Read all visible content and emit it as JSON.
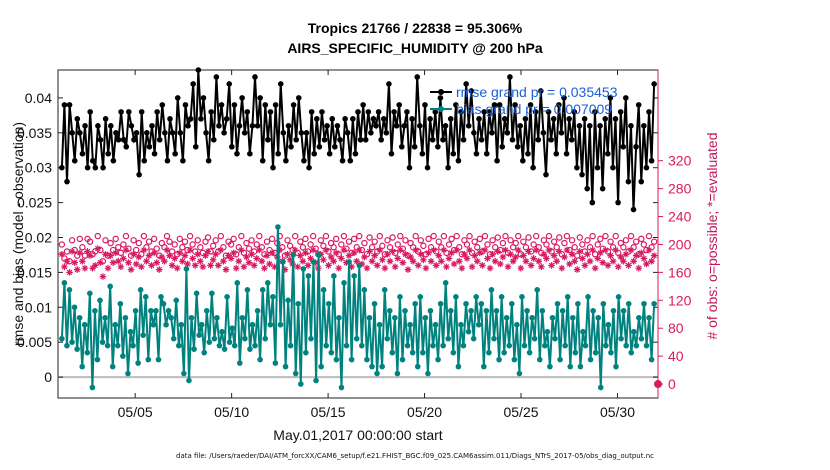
{
  "title_line1": "Tropics 21766 / 22838 = 95.306%",
  "title_line2": "AIRS_SPECIFIC_HUMIDITY @ 200 hPa",
  "xlabel": "May.01,2017 00:00:00 start",
  "ylabel_left": "rmse and bias (model - observation)",
  "ylabel_right": "# of obs: o=possible; *=evaluated",
  "footer": "data file: /Users/raeder/DAI/ATM_forcXX/CAM6_setup/f.e21.FHIST_BGC.f09_025.CAM6assim.011/Diags_NTrS_2017-05/obs_diag_output.nc",
  "chart_data": {
    "type": "line",
    "x_ticks": [
      5,
      10,
      15,
      20,
      25,
      30
    ],
    "x_tick_labels": [
      "05/05",
      "05/10",
      "05/15",
      "05/20",
      "05/25",
      "05/30"
    ],
    "xlim": [
      1,
      32.1
    ],
    "ylim_left": [
      -0.003,
      0.044
    ],
    "yticks_left": [
      0,
      0.005,
      0.01,
      0.015,
      0.02,
      0.025,
      0.03,
      0.035,
      0.04
    ],
    "ytick_labels_left": [
      "0",
      "0.005",
      "0.01",
      "0.015",
      "0.02",
      "0.025",
      "0.03",
      "0.035",
      "0.04"
    ],
    "ylim_right": [
      -20,
      450
    ],
    "yticks_right": [
      0,
      40,
      80,
      120,
      160,
      200,
      240,
      280,
      320
    ],
    "ytick_labels_right": [
      "0",
      "40",
      "80",
      "120",
      "160",
      "200",
      "240",
      "280",
      "320"
    ],
    "legend": [
      {
        "label": "rmse grand pr = 0.035453",
        "color": "#000000"
      },
      {
        "label": "bias grand pr = 0.007009",
        "color": "#00827f"
      }
    ],
    "colors": {
      "rmse": "#000000",
      "bias": "#00827f",
      "obs": "#d81b60",
      "zero_line": "#bbbbbb",
      "legend_text": "#1a5fd6"
    },
    "series": [
      {
        "name": "rmse",
        "axis": "left",
        "style": "line-marker",
        "values": [
          0.03,
          0.039,
          0.028,
          0.039,
          0.035,
          0.031,
          0.037,
          0.035,
          0.032,
          0.036,
          0.03,
          0.038,
          0.031,
          0.03,
          0.036,
          0.034,
          0.03,
          0.037,
          0.032,
          0.036,
          0.031,
          0.035,
          0.034,
          0.038,
          0.034,
          0.033,
          0.038,
          0.036,
          0.034,
          0.035,
          0.029,
          0.038,
          0.031,
          0.035,
          0.033,
          0.036,
          0.032,
          0.038,
          0.034,
          0.039,
          0.035,
          0.031,
          0.037,
          0.035,
          0.032,
          0.04,
          0.035,
          0.031,
          0.039,
          0.036,
          0.037,
          0.042,
          0.033,
          0.044,
          0.037,
          0.04,
          0.035,
          0.031,
          0.038,
          0.034,
          0.043,
          0.036,
          0.039,
          0.035,
          0.037,
          0.042,
          0.033,
          0.039,
          0.032,
          0.036,
          0.04,
          0.035,
          0.038,
          0.032,
          0.036,
          0.043,
          0.036,
          0.04,
          0.031,
          0.039,
          0.034,
          0.038,
          0.03,
          0.039,
          0.032,
          0.042,
          0.035,
          0.031,
          0.036,
          0.033,
          0.039,
          0.034,
          0.04,
          0.035,
          0.031,
          0.035,
          0.03,
          0.038,
          0.032,
          0.037,
          0.033,
          0.038,
          0.034,
          0.036,
          0.032,
          0.037,
          0.033,
          0.036,
          0.034,
          0.031,
          0.037,
          0.035,
          0.031,
          0.037,
          0.032,
          0.038,
          0.034,
          0.039,
          0.034,
          0.038,
          0.035,
          0.037,
          0.036,
          0.038,
          0.034,
          0.037,
          0.035,
          0.042,
          0.032,
          0.038,
          0.036,
          0.039,
          0.033,
          0.036,
          0.038,
          0.03,
          0.037,
          0.033,
          0.043,
          0.036,
          0.032,
          0.039,
          0.03,
          0.037,
          0.034,
          0.038,
          0.033,
          0.04,
          0.034,
          0.036,
          0.03,
          0.037,
          0.032,
          0.039,
          0.031,
          0.038,
          0.034,
          0.042,
          0.036,
          0.041,
          0.035,
          0.032,
          0.037,
          0.034,
          0.038,
          0.032,
          0.038,
          0.035,
          0.039,
          0.031,
          0.039,
          0.033,
          0.037,
          0.035,
          0.043,
          0.034,
          0.039,
          0.033,
          0.036,
          0.031,
          0.037,
          0.032,
          0.039,
          0.03,
          0.038,
          0.034,
          0.041,
          0.035,
          0.029,
          0.038,
          0.034,
          0.037,
          0.032,
          0.039,
          0.035,
          0.04,
          0.032,
          0.037,
          0.034,
          0.038,
          0.03,
          0.036,
          0.029,
          0.037,
          0.027,
          0.036,
          0.025,
          0.038,
          0.03,
          0.036,
          0.027,
          0.037,
          0.032,
          0.04,
          0.03,
          0.037,
          0.025,
          0.038,
          0.033,
          0.04,
          0.028,
          0.036,
          0.024,
          0.033,
          0.039,
          0.028,
          0.036,
          0.03,
          0.038,
          0.031,
          0.042
        ]
      },
      {
        "name": "bias",
        "axis": "left",
        "style": "line-marker",
        "values": [
          0.0055,
          0.0135,
          0.0045,
          0.0125,
          0.005,
          0.01,
          0.004,
          0.0085,
          0.0015,
          0.0075,
          0.0035,
          0.012,
          -0.0015,
          0.0095,
          0.0025,
          0.011,
          0.005,
          0.0085,
          0.0045,
          0.013,
          0.0015,
          0.0075,
          0.0045,
          0.0105,
          0.003,
          0.0085,
          0.0005,
          0.0065,
          0.0045,
          0.0095,
          0.002,
          0.0125,
          0.006,
          0.0115,
          0.0025,
          0.0095,
          0.0075,
          0.0095,
          0.0025,
          0.0115,
          0.0105,
          0.0075,
          0.0095,
          0.0085,
          0.0055,
          0.011,
          0.0045,
          0.0075,
          0.0005,
          0.0155,
          -0.0005,
          0.0085,
          0.004,
          0.012,
          0.006,
          0.0075,
          0.0035,
          0.0095,
          0.005,
          0.012,
          0.0055,
          0.0085,
          0.0045,
          0.0065,
          0.004,
          0.0115,
          0.005,
          0.007,
          0.0045,
          0.0135,
          0.002,
          0.0085,
          0.0055,
          0.0125,
          0.004,
          0.0075,
          0.0045,
          0.0095,
          0.0025,
          0.0125,
          0.0055,
          0.0135,
          0.0075,
          0.0115,
          0.002,
          0.0215,
          0.0075,
          0.0165,
          0.0015,
          0.011,
          0.0045,
          0.0175,
          0.0005,
          0.0105,
          -0.001,
          0.0155,
          0.0035,
          0.0145,
          0.0055,
          0.0165,
          -0.0005,
          0.0175,
          0.0015,
          0.0125,
          0.0045,
          0.0105,
          0.0035,
          0.0145,
          0.0025,
          0.0085,
          -0.0015,
          0.0135,
          0.0045,
          0.0165,
          0.0025,
          0.0145,
          0.0055,
          0.016,
          0.0045,
          0.0125,
          0.0025,
          0.0085,
          0.0015,
          0.0105,
          0.0005,
          0.0075,
          0.0015,
          0.0125,
          0.0055,
          0.0095,
          0.0035,
          0.0085,
          0.0005,
          0.0115,
          0.0025,
          0.0095,
          0.0045,
          0.0075,
          0.0035,
          0.0105,
          0.0015,
          0.0115,
          0.0035,
          0.0085,
          0.0005,
          0.0095,
          0.0045,
          0.0075,
          0.0025,
          0.0105,
          0.0045,
          0.0135,
          0.0055,
          0.0095,
          0.0035,
          0.0115,
          0.0015,
          0.0075,
          0.0045,
          0.0105,
          0.0065,
          0.0095,
          0.0055,
          0.0115,
          0.0075,
          0.0105,
          0.0015,
          0.0095,
          0.0035,
          0.0125,
          0.0055,
          0.0095,
          0.0025,
          0.0115,
          0.0035,
          0.0085,
          0.0045,
          0.0105,
          0.0025,
          0.0075,
          0.0005,
          0.0115,
          0.0045,
          0.0095,
          0.0035,
          0.0085,
          0.0055,
          0.0125,
          0.0025,
          0.0095,
          0.0045,
          0.0065,
          0.0015,
          0.0085,
          0.0055,
          0.0105,
          0.0025,
          0.0095,
          0.0045,
          0.0115,
          0.0015,
          0.0085,
          0.0035,
          0.0105,
          0.0015,
          0.0065,
          0.0045,
          0.0115,
          0.0025,
          0.0095,
          0.0035,
          0.0085,
          -0.0015,
          0.0105,
          0.0045,
          0.0075,
          0.0035,
          0.0095,
          0.0015,
          0.0115,
          0.0055,
          0.0095,
          0.0045,
          0.0105,
          0.0035,
          0.0065,
          0.0045,
          0.0085,
          0.0055,
          0.0105,
          0.0045,
          0.0085,
          0.0025,
          0.0105
        ]
      },
      {
        "name": "obs_possible",
        "axis": "right",
        "style": "marker-o",
        "values": [
          200,
          180,
          190,
          176,
          206,
          192,
          184,
          208,
          196,
          184,
          208,
          204,
          186,
          190,
          212,
          192,
          176,
          206,
          184,
          202,
          192,
          208,
          196,
          188,
          200,
          212,
          194,
          184,
          206,
          192,
          202,
          186,
          212,
          196,
          204,
          190,
          208,
          194,
          184,
          202,
          196,
          212,
          204,
          190,
          200,
          186,
          208,
          196,
          204,
          192,
          212,
          200,
          190,
          206,
          196,
          188,
          204,
          210,
          190,
          198,
          206,
          190,
          212,
          196,
          184,
          204,
          200,
          208,
          186,
          196,
          212,
          188,
          202,
          194,
          206,
          190,
          200,
          212,
          196,
          186,
          204,
          192,
          208,
          188,
          202,
          212,
          196,
          184,
          206,
          198,
          192,
          212,
          188,
          204,
          196,
          208,
          190,
          200,
          212,
          194,
          186,
          206,
          198,
          212,
          190,
          202,
          196,
          208,
          186,
          200,
          212,
          194,
          204,
          188,
          208,
          196,
          212,
          192,
          202,
          186,
          210,
          196,
          204,
          190,
          212,
          198,
          186,
          206,
          196,
          210,
          188,
          200,
          212,
          194,
          206,
          184,
          202,
          196,
          212,
          190,
          206,
          198,
          186,
          208,
          196,
          212,
          190,
          204,
          196,
          212,
          188,
          200,
          208,
          192,
          212,
          196,
          186,
          206,
          200,
          212,
          188,
          204,
          196,
          208,
          190,
          212,
          200,
          186,
          206,
          196,
          210,
          192,
          202,
          212,
          188,
          206,
          196,
          202,
          212,
          186,
          204,
          196,
          210,
          190,
          200,
          212,
          196,
          188,
          206,
          200,
          212,
          190,
          204,
          196,
          210,
          186,
          202,
          212,
          192,
          206,
          196,
          184,
          210,
          200,
          190,
          206,
          196,
          212,
          186,
          200,
          208,
          194,
          212,
          190,
          204,
          196,
          212,
          188,
          202,
          196,
          206,
          190,
          212,
          196,
          204,
          186,
          208,
          200,
          192,
          212,
          196,
          204
        ]
      },
      {
        "name": "obs_evaluated",
        "axis": "right",
        "style": "marker-star",
        "values": [
          186,
          168,
          176,
          160,
          190,
          174,
          164,
          188,
          176,
          166,
          190,
          184,
          166,
          170,
          194,
          174,
          154,
          186,
          166,
          184,
          174,
          188,
          176,
          168,
          180,
          192,
          174,
          164,
          186,
          172,
          182,
          168,
          192,
          176,
          184,
          170,
          188,
          174,
          164,
          182,
          176,
          192,
          184,
          170,
          180,
          166,
          188,
          176,
          184,
          172,
          192,
          180,
          170,
          186,
          176,
          168,
          184,
          190,
          170,
          178,
          186,
          170,
          192,
          176,
          164,
          184,
          180,
          188,
          166,
          176,
          192,
          168,
          182,
          174,
          186,
          170,
          180,
          192,
          176,
          166,
          184,
          172,
          188,
          168,
          182,
          192,
          176,
          164,
          186,
          178,
          172,
          192,
          168,
          184,
          176,
          188,
          170,
          180,
          192,
          174,
          166,
          186,
          178,
          192,
          170,
          182,
          176,
          188,
          166,
          180,
          192,
          174,
          184,
          168,
          188,
          176,
          192,
          172,
          182,
          166,
          190,
          176,
          184,
          170,
          192,
          178,
          166,
          186,
          176,
          190,
          168,
          180,
          192,
          174,
          186,
          164,
          182,
          176,
          192,
          170,
          186,
          178,
          166,
          188,
          176,
          192,
          170,
          184,
          176,
          192,
          168,
          180,
          188,
          172,
          192,
          176,
          166,
          186,
          180,
          192,
          168,
          184,
          176,
          188,
          170,
          192,
          180,
          166,
          186,
          176,
          190,
          172,
          182,
          192,
          168,
          186,
          176,
          182,
          192,
          166,
          184,
          176,
          190,
          170,
          180,
          192,
          176,
          168,
          186,
          180,
          192,
          170,
          184,
          176,
          190,
          166,
          182,
          192,
          172,
          186,
          176,
          164,
          190,
          180,
          170,
          186,
          176,
          192,
          166,
          180,
          188,
          174,
          192,
          170,
          184,
          176,
          192,
          168,
          182,
          176,
          186,
          170,
          192,
          176,
          184,
          166,
          188,
          180,
          172,
          192,
          176,
          184
        ]
      }
    ]
  }
}
